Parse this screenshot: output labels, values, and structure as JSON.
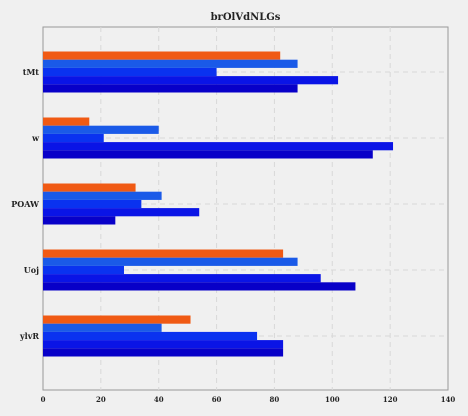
{
  "chart_data": {
    "type": "bar",
    "orientation": "horizontal",
    "title": "brOlVdNLGs",
    "xlabel": "",
    "ylabel": "",
    "xlim": [
      0,
      140
    ],
    "xticks": [
      0,
      20,
      40,
      60,
      80,
      100,
      120,
      140
    ],
    "grid": true,
    "categories": [
      "tMt",
      "w",
      "POAW",
      "Uoj",
      "ylvR"
    ],
    "series": [
      {
        "color": "#f05a14",
        "values": [
          82,
          16,
          32,
          83,
          51
        ]
      },
      {
        "color": "#1a5ae8",
        "values": [
          88,
          40,
          41,
          88,
          41
        ]
      },
      {
        "color": "#0a32f0",
        "values": [
          60,
          21,
          34,
          28,
          74
        ]
      },
      {
        "color": "#0a14e6",
        "values": [
          102,
          121,
          54,
          96,
          83
        ]
      },
      {
        "color": "#0800c8",
        "values": [
          88,
          114,
          25,
          108,
          83
        ]
      }
    ]
  }
}
